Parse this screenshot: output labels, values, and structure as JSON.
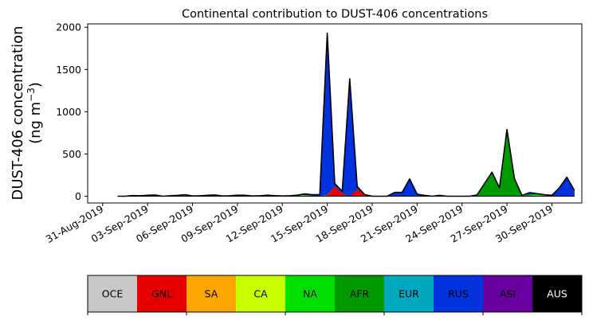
{
  "chart_data": {
    "type": "area",
    "stacked": true,
    "title": "Continental contribution to DUST-406 concentrations",
    "ylabel_line1": "DUST-406 concentration",
    "ylabel_line2_prefix": "(ng m",
    "ylabel_line2_sup": "−3",
    "ylabel_line2_suffix": ")",
    "xlabel": "",
    "ylim": [
      -80,
      2040
    ],
    "yticks": [
      0,
      500,
      1000,
      1500,
      2000
    ],
    "ytick_labels": [
      "0",
      "500",
      "1000",
      "1500",
      "2000"
    ],
    "x_start": "2019-08-30T00:00",
    "x_end": "2019-10-02T00:00",
    "xtick_dates": [
      "2019-08-31",
      "2019-09-03",
      "2019-09-06",
      "2019-09-09",
      "2019-09-12",
      "2019-09-15",
      "2019-09-18",
      "2019-09-21",
      "2019-09-24",
      "2019-09-27",
      "2019-09-30"
    ],
    "xtick_labels": [
      "31-Aug-2019",
      "03-Sep-2019",
      "06-Sep-2019",
      "09-Sep-2019",
      "12-Sep-2019",
      "15-Sep-2019",
      "18-Sep-2019",
      "21-Sep-2019",
      "24-Sep-2019",
      "27-Sep-2019",
      "30-Sep-2019"
    ],
    "grid": false,
    "x": [
      "2019-09-01T00:00",
      "2019-09-01T12:00",
      "2019-09-02T00:00",
      "2019-09-02T12:00",
      "2019-09-03T00:00",
      "2019-09-03T12:00",
      "2019-09-04T00:00",
      "2019-09-04T12:00",
      "2019-09-05T00:00",
      "2019-09-05T12:00",
      "2019-09-06T00:00",
      "2019-09-06T12:00",
      "2019-09-07T00:00",
      "2019-09-07T12:00",
      "2019-09-08T00:00",
      "2019-09-08T12:00",
      "2019-09-09T00:00",
      "2019-09-09T12:00",
      "2019-09-10T00:00",
      "2019-09-10T12:00",
      "2019-09-11T00:00",
      "2019-09-11T12:00",
      "2019-09-12T00:00",
      "2019-09-12T12:00",
      "2019-09-13T00:00",
      "2019-09-13T12:00",
      "2019-09-14T00:00",
      "2019-09-14T12:00",
      "2019-09-15T00:00",
      "2019-09-15T12:00",
      "2019-09-16T00:00",
      "2019-09-16T12:00",
      "2019-09-17T00:00",
      "2019-09-17T12:00",
      "2019-09-18T00:00",
      "2019-09-18T12:00",
      "2019-09-19T00:00",
      "2019-09-19T12:00",
      "2019-09-20T00:00",
      "2019-09-20T12:00",
      "2019-09-21T00:00",
      "2019-09-21T12:00",
      "2019-09-22T00:00",
      "2019-09-22T12:00",
      "2019-09-23T00:00",
      "2019-09-23T12:00",
      "2019-09-24T00:00",
      "2019-09-24T12:00",
      "2019-09-25T00:00",
      "2019-09-25T12:00",
      "2019-09-26T00:00",
      "2019-09-26T12:00",
      "2019-09-27T00:00",
      "2019-09-27T12:00",
      "2019-09-28T00:00",
      "2019-09-28T12:00",
      "2019-09-29T00:00",
      "2019-09-29T12:00",
      "2019-09-30T00:00",
      "2019-09-30T12:00",
      "2019-10-01T00:00",
      "2019-10-01T12:00"
    ],
    "series": [
      {
        "name": "OCE",
        "color": "#c8c8c8",
        "values": [
          0,
          0,
          0,
          0,
          0,
          0,
          0,
          0,
          0,
          0,
          0,
          0,
          0,
          0,
          0,
          0,
          0,
          0,
          0,
          0,
          0,
          0,
          0,
          0,
          0,
          0,
          0,
          0,
          0,
          0,
          0,
          0,
          0,
          0,
          0,
          0,
          0,
          0,
          0,
          0,
          0,
          0,
          0,
          0,
          0,
          0,
          0,
          0,
          0,
          0,
          0,
          0,
          0,
          0,
          0,
          0,
          0,
          0,
          0,
          0,
          0,
          0
        ]
      },
      {
        "name": "GNL",
        "color": "#e60000",
        "values": [
          0,
          0,
          0,
          0,
          0,
          0,
          0,
          0,
          0,
          0,
          0,
          0,
          0,
          0,
          0,
          0,
          0,
          0,
          0,
          0,
          0,
          0,
          0,
          0,
          0,
          10,
          5,
          0,
          15,
          120,
          40,
          0,
          90,
          20,
          0,
          0,
          0,
          0,
          0,
          0,
          0,
          0,
          0,
          0,
          0,
          0,
          0,
          0,
          0,
          0,
          0,
          0,
          0,
          0,
          0,
          0,
          0,
          0,
          0,
          0,
          0,
          0
        ]
      },
      {
        "name": "SA",
        "color": "#ffa500",
        "values": [
          0,
          0,
          0,
          0,
          0,
          0,
          0,
          0,
          0,
          0,
          0,
          0,
          0,
          0,
          0,
          0,
          0,
          0,
          0,
          0,
          0,
          0,
          0,
          0,
          0,
          0,
          0,
          0,
          0,
          0,
          0,
          0,
          0,
          0,
          0,
          0,
          0,
          0,
          0,
          0,
          0,
          0,
          0,
          0,
          0,
          0,
          0,
          0,
          0,
          0,
          0,
          0,
          0,
          0,
          0,
          0,
          0,
          0,
          0,
          0,
          0,
          0
        ]
      },
      {
        "name": "CA",
        "color": "#c8ff00",
        "values": [
          0,
          0,
          3,
          2,
          3,
          5,
          0,
          0,
          5,
          8,
          0,
          0,
          3,
          5,
          0,
          0,
          5,
          3,
          0,
          0,
          5,
          2,
          0,
          0,
          5,
          3,
          0,
          0,
          0,
          0,
          0,
          0,
          0,
          0,
          0,
          0,
          0,
          0,
          0,
          0,
          0,
          0,
          0,
          0,
          0,
          0,
          0,
          0,
          0,
          0,
          0,
          0,
          0,
          0,
          0,
          3,
          5,
          3,
          0,
          0,
          0,
          0
        ]
      },
      {
        "name": "NA",
        "color": "#00e000",
        "values": [
          0,
          0,
          5,
          3,
          8,
          10,
          0,
          5,
          5,
          10,
          3,
          5,
          8,
          10,
          3,
          5,
          8,
          8,
          3,
          5,
          8,
          5,
          3,
          5,
          8,
          5,
          3,
          5,
          5,
          0,
          0,
          0,
          0,
          0,
          0,
          0,
          0,
          0,
          0,
          0,
          0,
          0,
          0,
          0,
          0,
          0,
          0,
          0,
          0,
          0,
          0,
          0,
          0,
          5,
          10,
          10,
          25,
          15,
          0,
          0,
          0,
          0
        ]
      },
      {
        "name": "AFR",
        "color": "#009900",
        "values": [
          0,
          0,
          0,
          0,
          0,
          0,
          0,
          0,
          0,
          0,
          0,
          0,
          0,
          0,
          0,
          0,
          0,
          0,
          0,
          0,
          0,
          0,
          0,
          0,
          0,
          0,
          0,
          0,
          0,
          0,
          0,
          0,
          0,
          0,
          0,
          0,
          0,
          0,
          0,
          0,
          0,
          0,
          0,
          0,
          0,
          0,
          0,
          0,
          15,
          150,
          285,
          100,
          790,
          200,
          0,
          10,
          0,
          0,
          0,
          0,
          0,
          0
        ]
      },
      {
        "name": "EUR",
        "color": "#00a8c0",
        "values": [
          0,
          0,
          0,
          0,
          0,
          0,
          0,
          0,
          0,
          0,
          0,
          0,
          0,
          0,
          0,
          0,
          0,
          0,
          0,
          0,
          0,
          0,
          0,
          0,
          0,
          0,
          0,
          0,
          0,
          0,
          0,
          0,
          0,
          0,
          0,
          0,
          0,
          0,
          0,
          0,
          0,
          0,
          0,
          0,
          0,
          0,
          0,
          0,
          0,
          0,
          0,
          0,
          0,
          0,
          0,
          0,
          0,
          0,
          0,
          0,
          0,
          0
        ]
      },
      {
        "name": "RUS",
        "color": "#0033dd",
        "values": [
          0,
          0,
          0,
          0,
          0,
          0,
          0,
          0,
          0,
          0,
          0,
          0,
          0,
          0,
          0,
          0,
          0,
          0,
          0,
          0,
          0,
          0,
          0,
          0,
          0,
          10,
          10,
          15,
          1910,
          30,
          20,
          1390,
          25,
          0,
          0,
          0,
          0,
          45,
          45,
          205,
          25,
          10,
          0,
          10,
          0,
          0,
          0,
          0,
          0,
          0,
          0,
          0,
          0,
          5,
          0,
          20,
          0,
          0,
          10,
          100,
          225,
          70
        ]
      },
      {
        "name": "ASI",
        "color": "#6a00a0",
        "values": [
          0,
          0,
          0,
          0,
          0,
          0,
          0,
          0,
          0,
          0,
          0,
          0,
          0,
          0,
          0,
          0,
          0,
          0,
          0,
          0,
          0,
          0,
          0,
          0,
          0,
          0,
          0,
          0,
          0,
          0,
          0,
          0,
          0,
          0,
          0,
          0,
          0,
          0,
          0,
          0,
          0,
          0,
          0,
          0,
          0,
          0,
          0,
          0,
          0,
          0,
          0,
          0,
          0,
          0,
          0,
          0,
          0,
          0,
          0,
          0,
          0,
          0
        ]
      },
      {
        "name": "AUS",
        "color": "#000000",
        "values": [
          0,
          0,
          0,
          0,
          0,
          0,
          0,
          0,
          0,
          0,
          0,
          0,
          0,
          0,
          0,
          0,
          0,
          0,
          0,
          0,
          0,
          0,
          0,
          0,
          0,
          0,
          0,
          0,
          0,
          0,
          0,
          0,
          0,
          0,
          0,
          0,
          0,
          0,
          0,
          0,
          0,
          0,
          0,
          0,
          0,
          0,
          0,
          0,
          0,
          0,
          0,
          0,
          0,
          0,
          0,
          0,
          0,
          0,
          0,
          0,
          0,
          0
        ]
      }
    ],
    "legend": [
      {
        "label": "OCE",
        "color": "#c8c8c8",
        "text_color": "#000000"
      },
      {
        "label": "GNL",
        "color": "#e60000",
        "text_color": "#000000"
      },
      {
        "label": "SA",
        "color": "#ffa500",
        "text_color": "#000000"
      },
      {
        "label": "CA",
        "color": "#c8ff00",
        "text_color": "#000000"
      },
      {
        "label": "NA",
        "color": "#00e000",
        "text_color": "#000000"
      },
      {
        "label": "AFR",
        "color": "#009900",
        "text_color": "#000000"
      },
      {
        "label": "EUR",
        "color": "#00a8c0",
        "text_color": "#000000"
      },
      {
        "label": "RUS",
        "color": "#0033dd",
        "text_color": "#000000"
      },
      {
        "label": "ASI",
        "color": "#6a00a0",
        "text_color": "#000000"
      },
      {
        "label": "AUS",
        "color": "#000000",
        "text_color": "#ffffff"
      }
    ],
    "legend_placement": "bottom colorbar"
  }
}
